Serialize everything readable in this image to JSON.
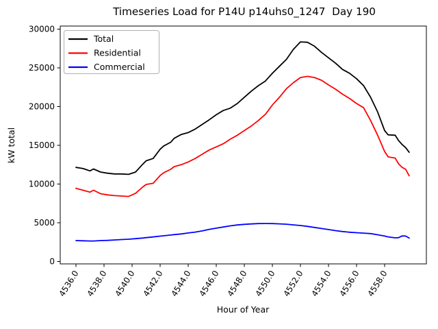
{
  "chart_data": {
    "type": "line",
    "title": "Timeseries Load for P14U p14uhs0_1247  Day 190",
    "xlabel": "Hour of Year",
    "ylabel": "kW total",
    "xlim": [
      4534.9,
      4561.0
    ],
    "ylim": [
      0,
      30000
    ],
    "grid": false,
    "legend_position": "upper left",
    "xticks": [
      4536,
      4538,
      4540,
      4542,
      4544,
      4546,
      4548,
      4550,
      4552,
      4554,
      4556,
      4558
    ],
    "xtick_labels": [
      "4536.0",
      "4538.0",
      "4540.0",
      "4542.0",
      "4544.0",
      "4546.0",
      "4548.0",
      "4550.0",
      "4552.0",
      "4554.0",
      "4556.0",
      "4558.0"
    ],
    "yticks": [
      0,
      5000,
      10000,
      15000,
      20000,
      25000,
      30000
    ],
    "ytick_labels": [
      "0",
      "5000",
      "10000",
      "15000",
      "20000",
      "25000",
      "30000"
    ],
    "x": [
      4536.0,
      4536.5,
      4537.0,
      4537.25,
      4537.75,
      4538.25,
      4538.75,
      4539.25,
      4539.75,
      4540.25,
      4540.75,
      4541.0,
      4541.5,
      4542.0,
      4542.25,
      4542.75,
      4543.0,
      4543.5,
      4544.0,
      4544.5,
      4545.0,
      4545.5,
      4546.0,
      4546.5,
      4547.0,
      4547.5,
      4548.0,
      4548.5,
      4549.0,
      4549.5,
      4550.0,
      4550.5,
      4551.0,
      4551.5,
      4552.0,
      4552.5,
      4553.0,
      4553.5,
      4554.0,
      4554.5,
      4555.0,
      4555.5,
      4556.0,
      4556.5,
      4557.0,
      4557.5,
      4558.0,
      4558.25,
      4558.75,
      4559.0,
      4559.25,
      4559.5,
      4559.75
    ],
    "series": [
      {
        "name": "Total",
        "color": "#000000",
        "values": [
          12150,
          12000,
          11700,
          11950,
          11550,
          11400,
          11300,
          11300,
          11250,
          11550,
          12550,
          13000,
          13300,
          14500,
          14900,
          15400,
          15900,
          16400,
          16650,
          17100,
          17700,
          18300,
          18950,
          19500,
          19800,
          20400,
          21200,
          22000,
          22700,
          23300,
          24300,
          25200,
          26100,
          27400,
          28350,
          28300,
          27800,
          27000,
          26300,
          25600,
          24800,
          24300,
          23600,
          22700,
          21200,
          19300,
          16900,
          16350,
          16300,
          15600,
          15100,
          14700,
          14100
        ]
      },
      {
        "name": "Residential",
        "color": "#ff0000",
        "values": [
          9450,
          9200,
          8950,
          9200,
          8750,
          8600,
          8500,
          8450,
          8400,
          8800,
          9600,
          9950,
          10100,
          11100,
          11450,
          11900,
          12250,
          12500,
          12850,
          13300,
          13850,
          14400,
          14800,
          15200,
          15800,
          16300,
          16900,
          17500,
          18200,
          19000,
          20200,
          21200,
          22300,
          23100,
          23750,
          23900,
          23750,
          23400,
          22800,
          22250,
          21600,
          21050,
          20400,
          19850,
          18200,
          16300,
          14200,
          13500,
          13350,
          12600,
          12150,
          11900,
          11050
        ]
      },
      {
        "name": "Commercial",
        "color": "#0000ff",
        "values": [
          2700,
          2670,
          2650,
          2650,
          2700,
          2730,
          2780,
          2830,
          2880,
          2950,
          3030,
          3080,
          3170,
          3270,
          3320,
          3420,
          3470,
          3560,
          3680,
          3800,
          3950,
          4150,
          4300,
          4450,
          4600,
          4720,
          4800,
          4850,
          4890,
          4900,
          4890,
          4860,
          4810,
          4730,
          4650,
          4530,
          4400,
          4260,
          4120,
          3980,
          3870,
          3780,
          3720,
          3660,
          3600,
          3450,
          3280,
          3180,
          3050,
          3080,
          3300,
          3280,
          3020
        ]
      }
    ]
  }
}
